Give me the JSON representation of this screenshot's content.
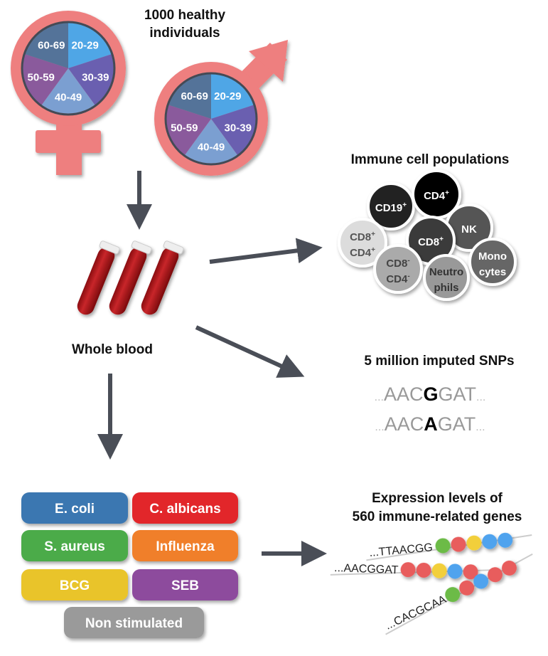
{
  "title": {
    "line1": "1000 healthy",
    "line2": "individuals"
  },
  "age_groups": [
    {
      "label": "20-29",
      "color": "#4fa6e6"
    },
    {
      "label": "30-39",
      "color": "#6a5fb0"
    },
    {
      "label": "40-49",
      "color": "#7b9fd1"
    },
    {
      "label": "50-59",
      "color": "#8a5a9c"
    },
    {
      "label": "60-69",
      "color": "#547399"
    }
  ],
  "symbol_color": "#ee7f7f",
  "arrow_color": "#4a4e57",
  "whole_blood": "Whole blood",
  "immune": {
    "title": "Immune cell populations",
    "cells": [
      {
        "l1": "CD19",
        "sup1": "+",
        "l2": "",
        "sup2": "",
        "fill": "#222222",
        "text": "#ffffff"
      },
      {
        "l1": "CD4",
        "sup1": "+",
        "l2": "",
        "sup2": "",
        "fill": "#050505",
        "text": "#ffffff"
      },
      {
        "l1": "NK",
        "sup1": "",
        "l2": "",
        "sup2": "",
        "fill": "#555555",
        "text": "#ffffff"
      },
      {
        "l1": "CD8",
        "sup1": "+",
        "l2": "CD4",
        "sup2": "+",
        "fill": "#dcdcdc",
        "text": "#555555"
      },
      {
        "l1": "CD8",
        "sup1": "+",
        "l2": "",
        "sup2": "",
        "fill": "#3a3a3a",
        "text": "#ffffff"
      },
      {
        "l1": "CD8",
        "sup1": "-",
        "l2": "CD4",
        "sup2": "-",
        "fill": "#aaaaaa",
        "text": "#444444"
      },
      {
        "l1": "Neutro",
        "sup1": "",
        "l2": "phils",
        "sup2": "",
        "fill": "#999999",
        "text": "#333333"
      },
      {
        "l1": "Mono",
        "sup1": "",
        "l2": "cytes",
        "sup2": "",
        "fill": "#666666",
        "text": "#ffffff"
      }
    ]
  },
  "snps": {
    "title": "5 million imputed SNPs",
    "seqs": [
      {
        "pre": "AAC",
        "snp": "G",
        "post": "GAT"
      },
      {
        "pre": "AAC",
        "snp": "A",
        "post": "GAT"
      }
    ],
    "dots": "..."
  },
  "expression": {
    "title1": "Expression levels of",
    "title2": "560 immune-related genes",
    "rows": [
      {
        "seq": "...TTAACGG",
        "beads": [
          "#6cbb46",
          "#e85d5d",
          "#f2cf3a",
          "#4fa3ee",
          "#4fa3ee"
        ]
      },
      {
        "seq": "...AACGGAT",
        "beads": [
          "#e85d5d",
          "#e85d5d",
          "#f2cf3a",
          "#4fa3ee",
          "#e85d5d"
        ]
      },
      {
        "seq": "...CACGCAA",
        "beads": [
          "#6cbb46",
          "#e85d5d",
          "#4fa3ee",
          "#e85d5d",
          "#e85d5d"
        ]
      }
    ]
  },
  "stimuli": [
    {
      "label": "E. coli",
      "color": "#3a77b1"
    },
    {
      "label": "C. albicans",
      "color": "#e2272c"
    },
    {
      "label": "S. aureus",
      "color": "#4bab49"
    },
    {
      "label": "Influenza",
      "color": "#f07f29"
    },
    {
      "label": "BCG",
      "color": "#e9c42b"
    },
    {
      "label": "SEB",
      "color": "#8d4c9d"
    },
    {
      "label": "Non stimulated",
      "color": "#9a9a9a"
    }
  ]
}
